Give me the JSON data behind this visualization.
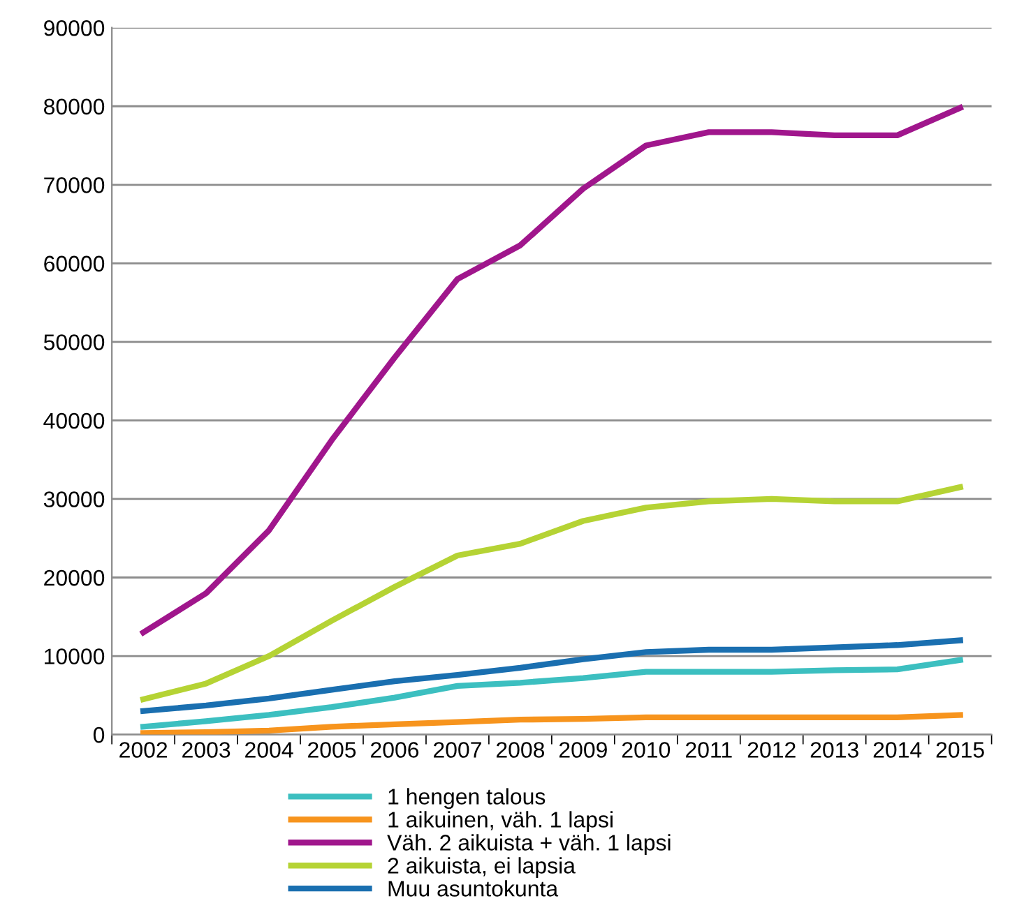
{
  "chart_data": {
    "type": "line",
    "categories": [
      "2002",
      "2003",
      "2004",
      "2005",
      "2006",
      "2007",
      "2008",
      "2009",
      "2010",
      "2011",
      "2012",
      "2013",
      "2014",
      "2015"
    ],
    "ylim": [
      0,
      90000
    ],
    "yticks": [
      0,
      10000,
      20000,
      30000,
      40000,
      50000,
      60000,
      70000,
      80000,
      90000
    ],
    "grid": "y",
    "legend": "bottom",
    "marker": "none",
    "line_style": "solid",
    "series": [
      {
        "name": "1 hengen talous",
        "color": "#3cbfc0",
        "values": [
          1000,
          1700,
          2500,
          3500,
          4700,
          6200,
          6600,
          7200,
          8000,
          8000,
          8000,
          8200,
          8300,
          9500
        ]
      },
      {
        "name": "1 aikuinen, väh. 1 lapsi",
        "color": "#f7941d",
        "values": [
          200,
          300,
          500,
          1000,
          1300,
          1600,
          1900,
          2000,
          2200,
          2200,
          2200,
          2200,
          2200,
          2500
        ]
      },
      {
        "name": "Väh. 2 aikuista + väh. 1 lapsi",
        "color": "#a0168c",
        "values": [
          13000,
          18000,
          26000,
          37500,
          48000,
          58000,
          62300,
          69500,
          75000,
          76700,
          76700,
          76300,
          76300,
          79800
        ]
      },
      {
        "name": "2 aikuista, ei lapsia",
        "color": "#b5d334",
        "values": [
          4500,
          6500,
          10000,
          14500,
          18800,
          22800,
          24300,
          27200,
          28900,
          29700,
          30000,
          29700,
          29700,
          31500
        ]
      },
      {
        "name": "Muu asuntokunta",
        "color": "#1a6fb0",
        "values": [
          3000,
          3700,
          4600,
          5700,
          6800,
          7600,
          8500,
          9600,
          10500,
          10800,
          10800,
          11100,
          11400,
          12000
        ]
      }
    ]
  }
}
